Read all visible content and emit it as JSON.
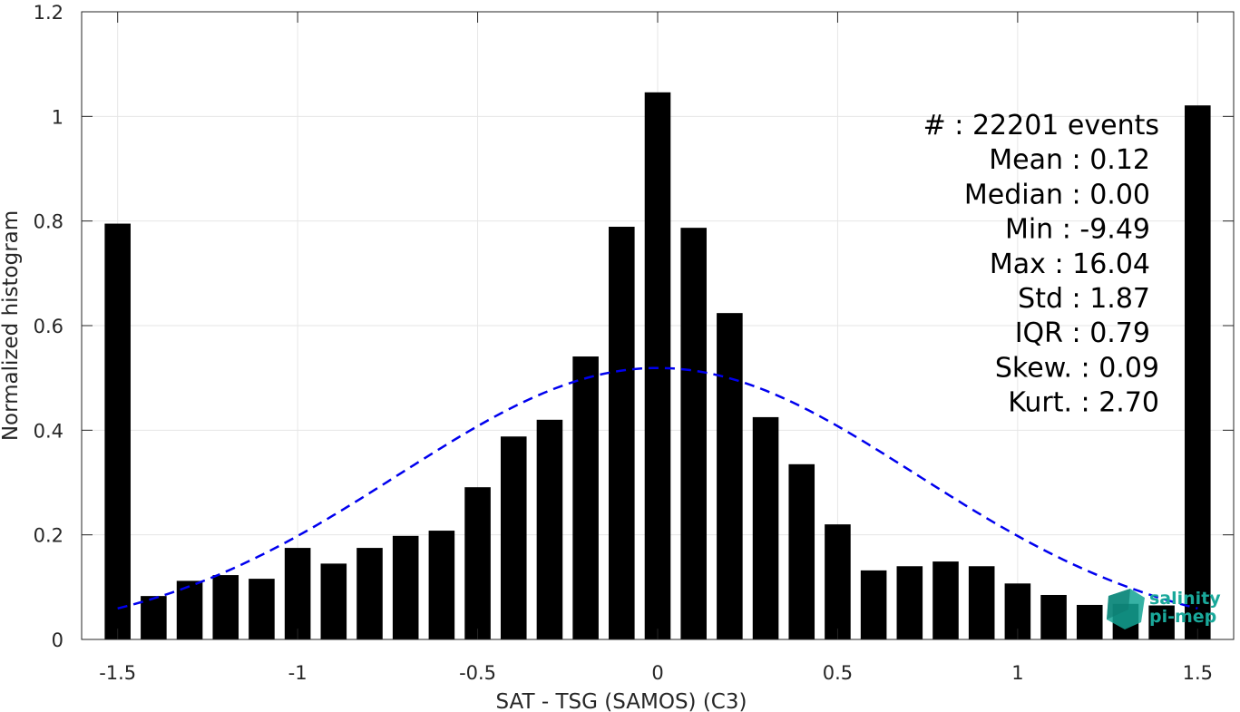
{
  "chart_data": {
    "type": "bar",
    "title": "",
    "xlabel": "SAT - TSG (SAMOS) (C3)",
    "ylabel": "Normalized histogram",
    "xlim": [
      -1.6,
      1.6
    ],
    "ylim": [
      0,
      1.2
    ],
    "xticks": [
      -1.5,
      -1,
      -0.5,
      0,
      0.5,
      1,
      1.5
    ],
    "xtick_labels": [
      "-1.5",
      "-1",
      "-0.5",
      "0",
      "0.5",
      "1",
      "1.5"
    ],
    "yticks": [
      0,
      0.2,
      0.4,
      0.6,
      0.8,
      1,
      1.2
    ],
    "ytick_labels": [
      "0",
      "0.2",
      "0.4",
      "0.6",
      "0.8",
      "1",
      "1.2"
    ],
    "grid": true,
    "bar_color": "#000000",
    "bins": [
      -1.5,
      -1.4,
      -1.3,
      -1.2,
      -1.1,
      -1.0,
      -0.9,
      -0.8,
      -0.7,
      -0.6,
      -0.5,
      -0.4,
      -0.3,
      -0.2,
      -0.1,
      0.0,
      0.1,
      0.2,
      0.3,
      0.4,
      0.5,
      0.6,
      0.7,
      0.8,
      0.9,
      1.0,
      1.1,
      1.2,
      1.3,
      1.4,
      1.5
    ],
    "values": [
      0.795,
      0.083,
      0.112,
      0.123,
      0.116,
      0.175,
      0.145,
      0.175,
      0.198,
      0.208,
      0.291,
      0.388,
      0.42,
      0.541,
      0.789,
      1.046,
      0.787,
      0.624,
      0.425,
      0.335,
      0.22,
      0.132,
      0.14,
      0.149,
      0.14,
      0.107,
      0.085,
      0.066,
      0.068,
      0.065,
      1.021
    ],
    "fit_curve": {
      "type": "gaussian",
      "color": "#0000ee",
      "style": "dashed",
      "mean": -0.0,
      "amplitude": 0.519,
      "sigma": 0.72,
      "x_range": [
        -1.5,
        1.5
      ]
    },
    "stats": [
      "#  : 22201 events",
      "Mean : 0.12",
      "Median : 0.00",
      "Min : -9.49",
      "Max : 16.04",
      "Std : 1.87",
      "IQR : 0.79",
      "Skew. : 0.09",
      "Kurt. : 2.70"
    ]
  },
  "logo": {
    "line1": "salinity",
    "line2": "pi-mep",
    "color": "#1aa89a"
  }
}
